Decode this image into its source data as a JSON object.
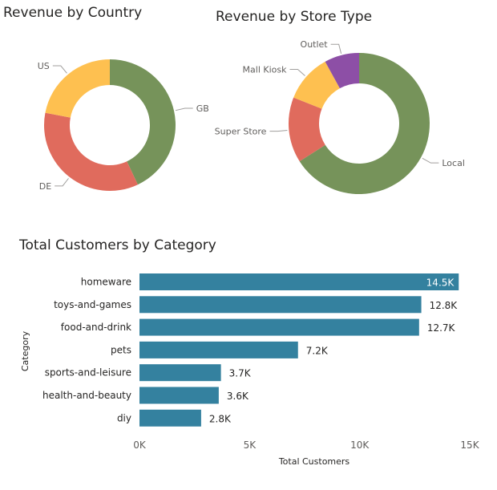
{
  "titles": {
    "country": "Revenue by Country",
    "store": "Revenue by Store Type",
    "customers": "Total Customers by Category"
  },
  "chart_data": [
    {
      "type": "pie",
      "title": "Revenue by Country",
      "donut": true,
      "labels": [
        "GB",
        "DE",
        "US"
      ],
      "values": [
        43,
        35,
        22
      ],
      "colors": [
        "#76935a",
        "#e06b5d",
        "#fec050"
      ]
    },
    {
      "type": "pie",
      "title": "Revenue by Store Type",
      "donut": true,
      "labels": [
        "Local",
        "Super Store",
        "Mall Kiosk",
        "Outlet"
      ],
      "values": [
        66,
        15,
        11,
        8
      ],
      "colors": [
        "#76935a",
        "#e06b5d",
        "#fec050",
        "#8d4fa6"
      ]
    },
    {
      "type": "bar",
      "orientation": "horizontal",
      "title": "Total Customers by Category",
      "categories": [
        "homeware",
        "toys-and-games",
        "food-and-drink",
        "pets",
        "sports-and-leisure",
        "health-and-beauty",
        "diy"
      ],
      "values": [
        14500,
        12800,
        12700,
        7200,
        3700,
        3600,
        2800
      ],
      "data_labels": [
        "14.5K",
        "12.8K",
        "12.7K",
        "7.2K",
        "3.7K",
        "3.6K",
        "2.8K"
      ],
      "xlabel": "Total Customers",
      "ylabel": "Category",
      "xlim": [
        0,
        15000
      ],
      "xticks": [
        0,
        5000,
        10000,
        15000
      ],
      "xtick_labels": [
        "0K",
        "5K",
        "10K",
        "15K"
      ],
      "color": "#34819f",
      "grid": false
    }
  ]
}
